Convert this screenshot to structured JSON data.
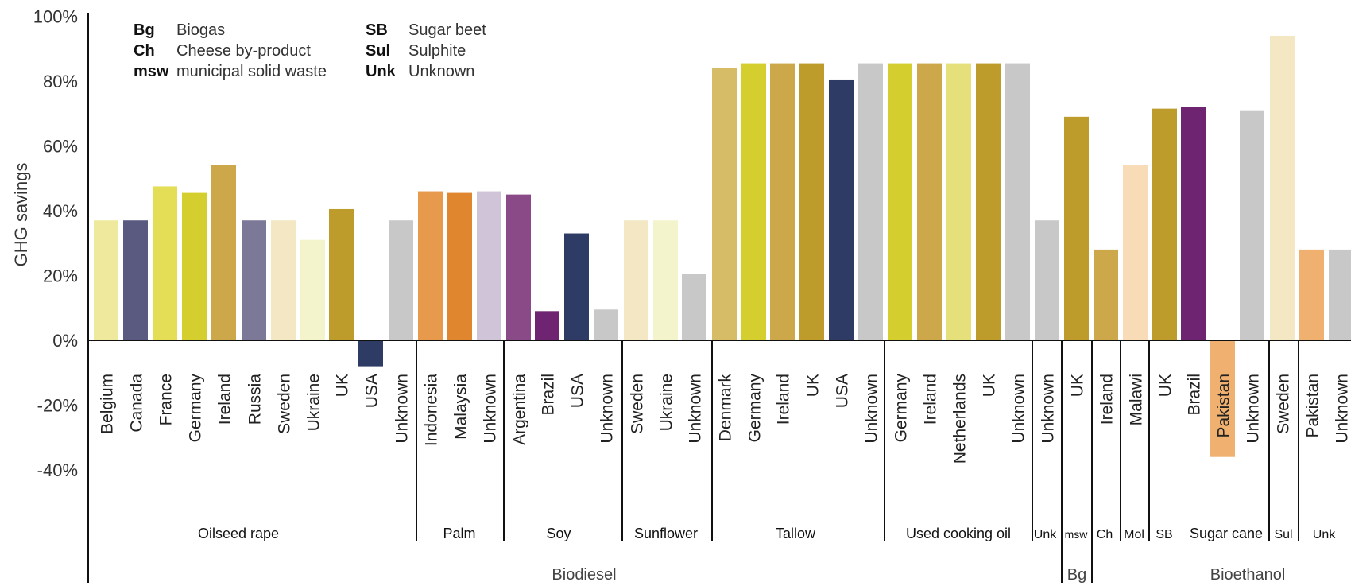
{
  "chart_data": {
    "type": "bar",
    "ylabel": "GHG savings",
    "ylim": [
      -60,
      100
    ],
    "yticks": [
      {
        "value": 100,
        "label": "100%"
      },
      {
        "value": 80,
        "label": "80%"
      },
      {
        "value": 60,
        "label": "60%"
      },
      {
        "value": 40,
        "label": "40%"
      },
      {
        "value": 20,
        "label": "20%"
      },
      {
        "value": 0,
        "label": "0%"
      },
      {
        "value": -20,
        "label": "-20%"
      },
      {
        "value": -40,
        "label": "-40%"
      }
    ],
    "legend": {
      "placement": "top-left",
      "items": [
        {
          "abbr": "Bg",
          "text": "Biogas"
        },
        {
          "abbr": "Ch",
          "text": "Cheese by-product"
        },
        {
          "abbr": "msw",
          "text": "municipal solid waste"
        },
        {
          "abbr": "SB",
          "text": "Sugar beet"
        },
        {
          "abbr": "Sul",
          "text": "Sulphite"
        },
        {
          "abbr": "Unk",
          "text": "Unknown"
        }
      ]
    },
    "bars": [
      {
        "label": "Belgium",
        "value": 37,
        "color": "#efe99e",
        "group": "Oilseed rape"
      },
      {
        "label": "Canada",
        "value": 37,
        "color": "#5a5a80",
        "group": "Oilseed rape"
      },
      {
        "label": "France",
        "value": 47.5,
        "color": "#e3de55",
        "group": "Oilseed rape"
      },
      {
        "label": "Germany",
        "value": 45.5,
        "color": "#d4cf2e",
        "group": "Oilseed rape"
      },
      {
        "label": "Ireland",
        "value": 54,
        "color": "#cca84a",
        "group": "Oilseed rape"
      },
      {
        "label": "Russia",
        "value": 37,
        "color": "#7c7898",
        "group": "Oilseed rape"
      },
      {
        "label": "Sweden",
        "value": 37,
        "color": "#f4e8c4",
        "group": "Oilseed rape"
      },
      {
        "label": "Ukraine",
        "value": 31,
        "color": "#f4f4cc",
        "group": "Oilseed rape"
      },
      {
        "label": "UK",
        "value": 40.5,
        "color": "#bd9c2c",
        "group": "Oilseed rape"
      },
      {
        "label": "USA",
        "value": -8,
        "color": "#2e3b64",
        "group": "Oilseed rape"
      },
      {
        "label": "Unknown",
        "value": 37,
        "color": "#c8c8c8",
        "group": "Oilseed rape"
      },
      {
        "label": "Indonesia",
        "value": 46,
        "color": "#e89a4c",
        "group": "Palm"
      },
      {
        "label": "Malaysia",
        "value": 45.5,
        "color": "#e0862e",
        "group": "Palm"
      },
      {
        "label": "Unknown",
        "value": 46,
        "color": "#d0c4d8",
        "group": "Palm"
      },
      {
        "label": "Argentina",
        "value": 45,
        "color": "#8a4a88",
        "group": "Soy"
      },
      {
        "label": "Brazil",
        "value": 9,
        "color": "#6e2470",
        "group": "Soy"
      },
      {
        "label": "USA",
        "value": 33,
        "color": "#2e3b64",
        "group": "Soy"
      },
      {
        "label": "Unknown",
        "value": 9.5,
        "color": "#c8c8c8",
        "group": "Soy"
      },
      {
        "label": "Sweden",
        "value": 37,
        "color": "#f4e8c4",
        "group": "Sunflower"
      },
      {
        "label": "Ukraine",
        "value": 37,
        "color": "#f4f4cc",
        "group": "Sunflower"
      },
      {
        "label": "Unknown",
        "value": 20.5,
        "color": "#c8c8c8",
        "group": "Sunflower"
      },
      {
        "label": "Denmark",
        "value": 84,
        "color": "#d6bc66",
        "group": "Tallow"
      },
      {
        "label": "Germany",
        "value": 85.5,
        "color": "#d4cf2e",
        "group": "Tallow"
      },
      {
        "label": "Ireland",
        "value": 85.5,
        "color": "#cca84a",
        "group": "Tallow"
      },
      {
        "label": "UK",
        "value": 85.5,
        "color": "#bd9c2c",
        "group": "Tallow"
      },
      {
        "label": "USA",
        "value": 80.5,
        "color": "#2e3b64",
        "group": "Tallow"
      },
      {
        "label": "Unknown",
        "value": 85.5,
        "color": "#c8c8c8",
        "group": "Tallow"
      },
      {
        "label": "Germany",
        "value": 85.5,
        "color": "#d4cf2e",
        "group": "Used cooking oil"
      },
      {
        "label": "Ireland",
        "value": 85.5,
        "color": "#cca84a",
        "group": "Used cooking oil"
      },
      {
        "label": "Netherlands",
        "value": 85.5,
        "color": "#e6e07a",
        "group": "Used cooking oil"
      },
      {
        "label": "UK",
        "value": 85.5,
        "color": "#bd9c2c",
        "group": "Used cooking oil"
      },
      {
        "label": "Unknown",
        "value": 85.5,
        "color": "#c8c8c8",
        "group": "Used cooking oil"
      },
      {
        "label": "Unknown",
        "value": 37,
        "color": "#c8c8c8",
        "group": "Unk"
      },
      {
        "label": "UK",
        "value": 69,
        "color": "#bd9c2c",
        "group": "msw"
      },
      {
        "label": "Ireland",
        "value": 28,
        "color": "#cca84a",
        "group": "Ch"
      },
      {
        "label": "Malawi",
        "value": 54,
        "color": "#f8dcb8",
        "group": "Mol"
      },
      {
        "label": "UK",
        "value": 71.5,
        "color": "#bd9c2c",
        "group": "SB"
      },
      {
        "label": "Brazil",
        "value": 72,
        "color": "#6e2470",
        "group": "Sugar cane"
      },
      {
        "label": "Pakistan",
        "value": -36,
        "color": "#f0b070",
        "group": "Sugar cane"
      },
      {
        "label": "Unknown",
        "value": 71,
        "color": "#c8c8c8",
        "group": "Sugar cane"
      },
      {
        "label": "Sweden",
        "value": 94,
        "color": "#f4e8c4",
        "group": "Sul"
      },
      {
        "label": "Pakistan",
        "value": 28,
        "color": "#f0b070",
        "group": "Unk"
      },
      {
        "label": "Unknown",
        "value": 28,
        "color": "#c8c8c8",
        "group": "Unk"
      }
    ],
    "groups": [
      {
        "label": "Oilseed rape"
      },
      {
        "label": "Palm"
      },
      {
        "label": "Soy"
      },
      {
        "label": "Sunflower"
      },
      {
        "label": "Tallow"
      },
      {
        "label": "Used cooking oil"
      },
      {
        "label": "Unk"
      },
      {
        "label": "msw"
      },
      {
        "label": "Ch"
      },
      {
        "label": "Mol"
      },
      {
        "label": "SB"
      },
      {
        "label": "Sugar cane"
      },
      {
        "label": "Sul"
      },
      {
        "label": "Unk"
      }
    ],
    "top_groups": [
      {
        "label": "Biodiesel"
      },
      {
        "label": "Bg"
      },
      {
        "label": "Bioethanol"
      }
    ]
  }
}
